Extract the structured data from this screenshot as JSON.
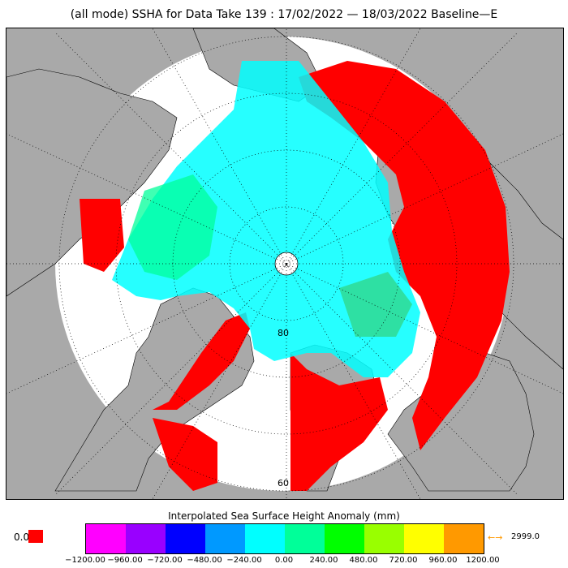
{
  "title": "(all mode) SSHA for Data Take 139 : 17/02/2022 — 18/03/2022 Baseline—E",
  "map": {
    "lat_labels": [
      "80",
      "60"
    ],
    "colors": {
      "land": "#a9a9a9",
      "ocean_bg": "#ffffff",
      "high": "#ff0000",
      "cyan": "#00ffff",
      "green": "#00ff99",
      "mid_green": "#33cc66",
      "blue": "#0000cc",
      "purple": "#9900ff"
    }
  },
  "legend": {
    "title": "Interpolated Sea Surface Height Anomaly (mm)",
    "zero_label": "0.0",
    "zero_color": "#ff0000",
    "overflow_arrow": "←→",
    "overflow_value": "2999.0",
    "overflow_color": "#ff9900",
    "colors": [
      "#ff00ff",
      "#9900ff",
      "#0000ff",
      "#0099ff",
      "#00ffff",
      "#00ff99",
      "#00ff00",
      "#99ff00",
      "#ffff00",
      "#ff9900"
    ],
    "ticks": [
      "−1200.00",
      "−960.00",
      "−720.00",
      "−480.00",
      "−240.00",
      "0.00",
      "240.00",
      "480.00",
      "720.00",
      "960.00",
      "1200.00"
    ]
  }
}
